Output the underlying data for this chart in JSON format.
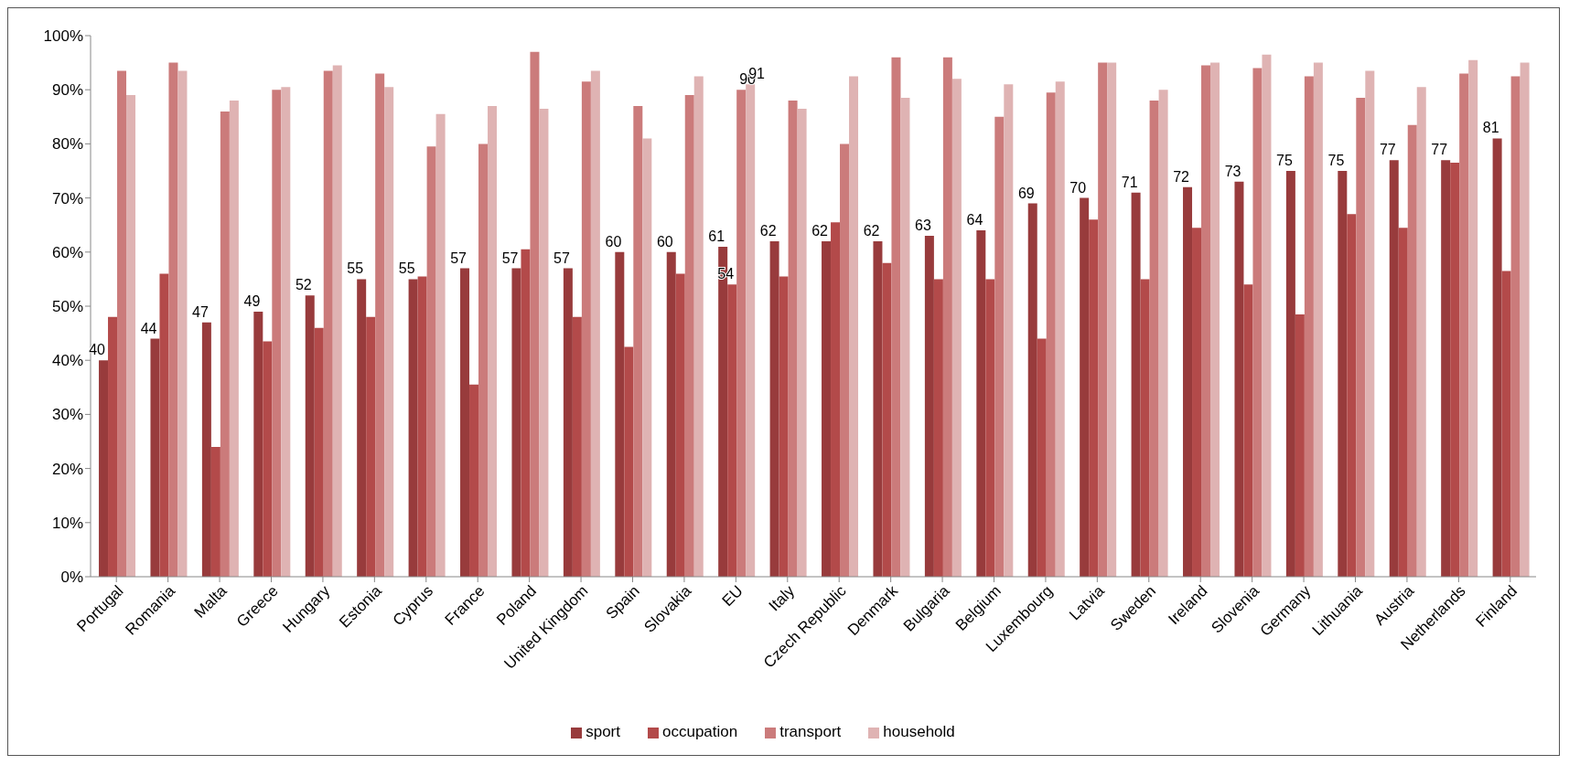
{
  "chart_data": {
    "type": "bar",
    "categories": [
      "Portugal",
      "Romania",
      "Malta",
      "Greece",
      "Hungary",
      "Estonia",
      "Cyprus",
      "France",
      "Poland",
      "United Kingdom",
      "Spain",
      "Slovakia",
      "EU",
      "Italy",
      "Czech Republic",
      "Denmark",
      "Bulgaria",
      "Belgium",
      "Luxembourg",
      "Latvia",
      "Sweden",
      "Ireland",
      "Slovenia",
      "Germany",
      "Lithuania",
      "Austria",
      "Netherlands",
      "Finland"
    ],
    "series": [
      {
        "name": "sport",
        "color": "#983b3c",
        "values": [
          40,
          44,
          47,
          49,
          52,
          55,
          55,
          57,
          57,
          57,
          60,
          60,
          61,
          62,
          62,
          62,
          63,
          64,
          69,
          70,
          71,
          72,
          73,
          75,
          75,
          77,
          77,
          81
        ],
        "value_labels": [
          "40",
          "44",
          "47",
          "49",
          "52",
          "55",
          "55",
          "57",
          "57",
          "57",
          "60",
          "60",
          "61",
          "62",
          "62",
          "62",
          "63",
          "64",
          "69",
          "70",
          "71",
          "72",
          "73",
          "75",
          "75",
          "77",
          "77",
          "81"
        ]
      },
      {
        "name": "occupation",
        "color": "#b34a4a",
        "values": [
          48,
          56,
          24,
          43.5,
          46,
          48,
          55.5,
          35.5,
          60.5,
          48,
          42.5,
          56,
          54,
          55.5,
          65.5,
          58,
          55,
          55,
          44,
          66,
          55,
          64.5,
          54,
          48.5,
          67,
          64.5,
          76.5,
          56.5
        ],
        "value_labels": [
          null,
          null,
          null,
          null,
          null,
          null,
          null,
          null,
          null,
          null,
          null,
          null,
          "54",
          null,
          null,
          null,
          null,
          null,
          null,
          null,
          null,
          null,
          null,
          null,
          null,
          null,
          null,
          null
        ]
      },
      {
        "name": "transport",
        "color": "#cb7b7b",
        "values": [
          93.5,
          95,
          86,
          90,
          93.5,
          93,
          79.5,
          80,
          97,
          91.5,
          87,
          89,
          90,
          88,
          80,
          96,
          96,
          85,
          89.5,
          95,
          88,
          94.5,
          94,
          92.5,
          88.5,
          83.5,
          93,
          92.5
        ],
        "value_labels": [
          null,
          null,
          null,
          null,
          null,
          null,
          null,
          null,
          null,
          null,
          null,
          null,
          "90",
          null,
          null,
          null,
          null,
          null,
          null,
          null,
          null,
          null,
          null,
          null,
          null,
          null,
          null,
          null
        ]
      },
      {
        "name": "household",
        "color": "#dfb3b3",
        "values": [
          89,
          93.5,
          88,
          90.5,
          94.5,
          90.5,
          85.5,
          87,
          86.5,
          93.5,
          81,
          92.5,
          91,
          86.5,
          92.5,
          88.5,
          92,
          91,
          91.5,
          95,
          90,
          95,
          96.5,
          95,
          93.5,
          90.5,
          95.5,
          95
        ],
        "value_labels": [
          null,
          null,
          null,
          null,
          null,
          null,
          null,
          null,
          null,
          null,
          null,
          null,
          "91",
          null,
          null,
          null,
          null,
          null,
          null,
          null,
          null,
          null,
          null,
          null,
          null,
          null,
          null,
          null
        ]
      }
    ],
    "ylim": [
      0,
      100
    ],
    "yticks": [
      {
        "value": 0,
        "label": "0%"
      },
      {
        "value": 10,
        "label": "10%"
      },
      {
        "value": 20,
        "label": "20%"
      },
      {
        "value": 30,
        "label": "30%"
      },
      {
        "value": 40,
        "label": "40%"
      },
      {
        "value": 50,
        "label": "50%"
      },
      {
        "value": 60,
        "label": "60%"
      },
      {
        "value": 70,
        "label": "70%"
      },
      {
        "value": 80,
        "label": "80%"
      },
      {
        "value": 90,
        "label": "90%"
      },
      {
        "value": 100,
        "label": "100%"
      }
    ],
    "grid": false,
    "legend": "bottom"
  }
}
